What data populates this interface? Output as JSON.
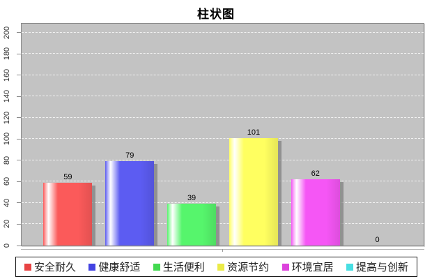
{
  "chart_data": {
    "type": "bar",
    "title": "柱状图",
    "categories": [
      "安全耐久",
      "健康舒适",
      "生活便利",
      "资源节约",
      "环境宜居",
      "提高与创新"
    ],
    "values": [
      59,
      79,
      39,
      101,
      62,
      0
    ],
    "bar_colors": [
      "#fb5a5a",
      "#5c5cf2",
      "#56f56c",
      "#ffff60",
      "#f556f5",
      "#55f0f0"
    ],
    "legend_marker_colors": [
      "#e84343",
      "#4343e2",
      "#43d950",
      "#ebeb47",
      "#dc43dc",
      "#47dee2"
    ],
    "xlabel": "",
    "ylabel": "",
    "ylim": [
      0,
      209
    ],
    "yticks": [
      0,
      20,
      40,
      60,
      80,
      100,
      120,
      140,
      160,
      180,
      200
    ],
    "grid": "horizontal-dashed",
    "gridline_color": "#f2f2f2",
    "plot_background": "#c3c3c3",
    "legend_position": "bottom"
  }
}
